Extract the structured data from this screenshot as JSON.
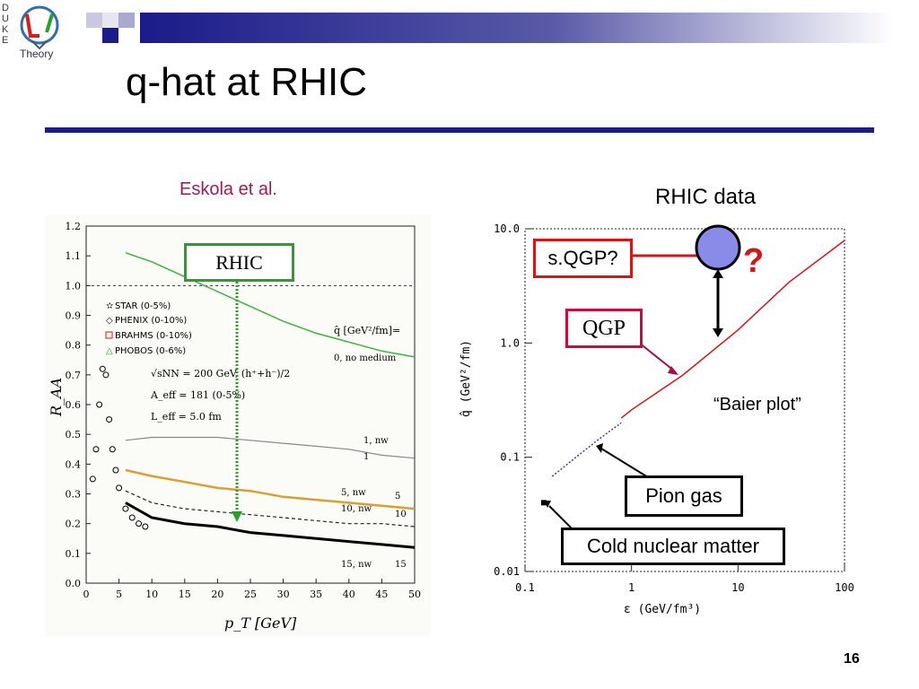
{
  "logo": {
    "letters": [
      "D",
      "U",
      "K",
      "E"
    ],
    "word": "Theory",
    "icon": "qcd-logo-icon"
  },
  "slide": {
    "title": "q-hat at RHIC",
    "page_number": "16"
  },
  "labels": {
    "eskola": "Eskola et al.",
    "rhic_data": "RHIC data",
    "rhic_box": "RHIC",
    "sqgp": "s.QGP?",
    "qgp": "QGP",
    "question": "?",
    "baier": "“Baier plot”",
    "pion_gas": "Pion gas",
    "cold": "Cold nuclear matter"
  },
  "colors": {
    "band": "#1b1b8a",
    "title_rule": "#1b1b8a",
    "eskola": "#a0195a",
    "red": "#d01818",
    "green": "#2aa02a",
    "circle": "#8a8ae8"
  },
  "chart_data": [
    {
      "type": "line",
      "xlabel": "p_T [GeV]",
      "ylabel": "R_AA",
      "xlim": [
        0,
        50
      ],
      "ylim": [
        0,
        1.2
      ],
      "x_ticks": [
        "0",
        "5",
        "10",
        "15",
        "20",
        "25",
        "30",
        "35",
        "40",
        "45",
        "50"
      ],
      "y_ticks": [
        "0.0",
        "0.1",
        "0.2",
        "0.3",
        "0.4",
        "0.5",
        "0.6",
        "0.7",
        "0.8",
        "0.9",
        "1.0",
        "1.1",
        "1.2"
      ],
      "legend": [
        "STAR (0-5%)",
        "PHENIX (0-10%)",
        "BRAHMS (0-10%)",
        "PHOBOS (0-6%)"
      ],
      "annotations": [
        "q̂ [GeV²/fm]=",
        "0, no medium",
        "√sNN = 200 GeV, (h⁺+h⁻)/2",
        "A_eff = 181 (0-5%)",
        "L_eff = 5.0 fm",
        "1, nw",
        "1",
        "5, nw",
        "5",
        "10, nw",
        "10",
        "15, nw",
        "15"
      ],
      "series": [
        {
          "name": "0, no medium",
          "x": [
            6,
            10,
            15,
            20,
            25,
            30,
            35,
            40,
            45,
            50
          ],
          "values": [
            1.11,
            1.08,
            1.03,
            0.98,
            0.93,
            0.88,
            0.84,
            0.81,
            0.78,
            0.76
          ]
        },
        {
          "name": "1",
          "x": [
            6,
            10,
            15,
            20,
            25,
            30,
            35,
            40,
            45,
            50
          ],
          "values": [
            0.48,
            0.49,
            0.49,
            0.49,
            0.48,
            0.47,
            0.46,
            0.45,
            0.43,
            0.42
          ]
        },
        {
          "name": "5",
          "x": [
            6,
            10,
            15,
            20,
            25,
            30,
            35,
            40,
            45,
            50
          ],
          "values": [
            0.38,
            0.36,
            0.34,
            0.32,
            0.31,
            0.29,
            0.28,
            0.27,
            0.26,
            0.25
          ]
        },
        {
          "name": "10",
          "x": [
            6,
            10,
            15,
            20,
            25,
            30,
            35,
            40,
            45,
            50
          ],
          "values": [
            0.31,
            0.27,
            0.25,
            0.24,
            0.23,
            0.22,
            0.21,
            0.2,
            0.2,
            0.19
          ]
        },
        {
          "name": "15",
          "x": [
            6,
            10,
            15,
            20,
            25,
            30,
            35,
            40,
            45,
            50
          ],
          "values": [
            0.27,
            0.22,
            0.2,
            0.19,
            0.17,
            0.16,
            0.15,
            0.14,
            0.13,
            0.12
          ]
        }
      ],
      "data_points": {
        "x": [
          1,
          1.5,
          2,
          2.5,
          3,
          3.5,
          4,
          4.5,
          5,
          6,
          7,
          8,
          9
        ],
        "values": [
          0.35,
          0.45,
          0.6,
          0.72,
          0.7,
          0.55,
          0.45,
          0.38,
          0.32,
          0.25,
          0.22,
          0.2,
          0.19
        ]
      }
    },
    {
      "type": "line",
      "xlabel": "ε (GeV/fm³)",
      "ylabel": "q̂ (GeV²/fm)",
      "x_scale": "log",
      "y_scale": "log",
      "xlim": [
        0.1,
        100
      ],
      "ylim": [
        0.01,
        10
      ],
      "x_ticks": [
        "0.1",
        "1",
        "10",
        "100"
      ],
      "y_ticks": [
        "0.01",
        "0.1",
        "1.0",
        "10.0"
      ],
      "series": [
        {
          "name": "QGP",
          "x": [
            0.8,
            1,
            3,
            10,
            30,
            100
          ],
          "values": [
            0.22,
            0.26,
            0.52,
            1.3,
            3.4,
            7.9
          ]
        },
        {
          "name": "Pion gas",
          "x": [
            0.18,
            0.3,
            0.5,
            0.8
          ],
          "values": [
            0.068,
            0.1,
            0.145,
            0.2
          ]
        }
      ],
      "points": [
        {
          "name": "Cold nuclear matter",
          "x": 0.15,
          "y": 0.04
        }
      ]
    }
  ]
}
